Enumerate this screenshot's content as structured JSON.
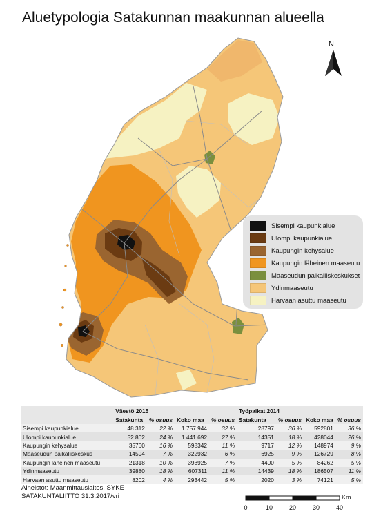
{
  "title": "Aluetypologia Satakunnan maakunnan alueella",
  "north_label": "N",
  "legend": [
    {
      "label": "Sisempi kaupunkialue",
      "color": "#111111"
    },
    {
      "label": "Ulompi kaupunkialue",
      "color": "#6b3b12"
    },
    {
      "label": "Kaupungin kehysalue",
      "color": "#9a6530"
    },
    {
      "label": "Kaupungin läheinen maaseutu",
      "color": "#f0951f"
    },
    {
      "label": "Maaseudun paikalliskeskukset",
      "color": "#7a8f3e"
    },
    {
      "label": "Ydinmaaseutu",
      "color": "#f5c678"
    },
    {
      "label": "Harvaan asuttu maaseutu",
      "color": "#f6f2c2"
    }
  ],
  "table": {
    "group_headers": [
      "Väestö 2015",
      "Työpaikat 2014"
    ],
    "sub_headers": [
      "Satakunta",
      "% osuus",
      "Koko maa",
      "% osuus",
      "Satakunta",
      "% osuus",
      "Koko maa",
      "% osuus"
    ],
    "rows": [
      [
        "Sisempi kaupunkialue",
        "48 312",
        "22 %",
        "1 757 944",
        "32 %",
        "28797",
        "36 %",
        "592801",
        "36 %"
      ],
      [
        "Ulompi kaupunkialue",
        "52 802",
        "24 %",
        "1 441 692",
        "27 %",
        "14351",
        "18 %",
        "428044",
        "26 %"
      ],
      [
        "Kaupungin kehysalue",
        "35760",
        "16 %",
        "598342",
        "11 %",
        "9717",
        "12 %",
        "148974",
        "9 %"
      ],
      [
        "Maaseudun paikalliskeskus",
        "14594",
        "7 %",
        "322932",
        "6 %",
        "6925",
        "9 %",
        "126729",
        "8 %"
      ],
      [
        "Kaupungin läheinen maaseutu",
        "21318",
        "10 %",
        "393925",
        "7 %",
        "4400",
        "5 %",
        "84262",
        "5 %"
      ],
      [
        "Ydinmaaseutu",
        "39880",
        "18 %",
        "607311",
        "11 %",
        "14439",
        "18 %",
        "186507",
        "11 %"
      ],
      [
        "Harvaan asuttu maaseutu",
        "8202",
        "4 %",
        "293442",
        "5 %",
        "2020",
        "3 %",
        "74121",
        "5 %"
      ]
    ]
  },
  "credits": {
    "line1": "Aineistot: Maanmittauslaitos, SYKE",
    "line2": "SATAKUNTALIITTO 31.3.2017/vri"
  },
  "scale": {
    "unit": "Km",
    "ticks": [
      "0",
      "10",
      "20",
      "30",
      "40"
    ]
  }
}
